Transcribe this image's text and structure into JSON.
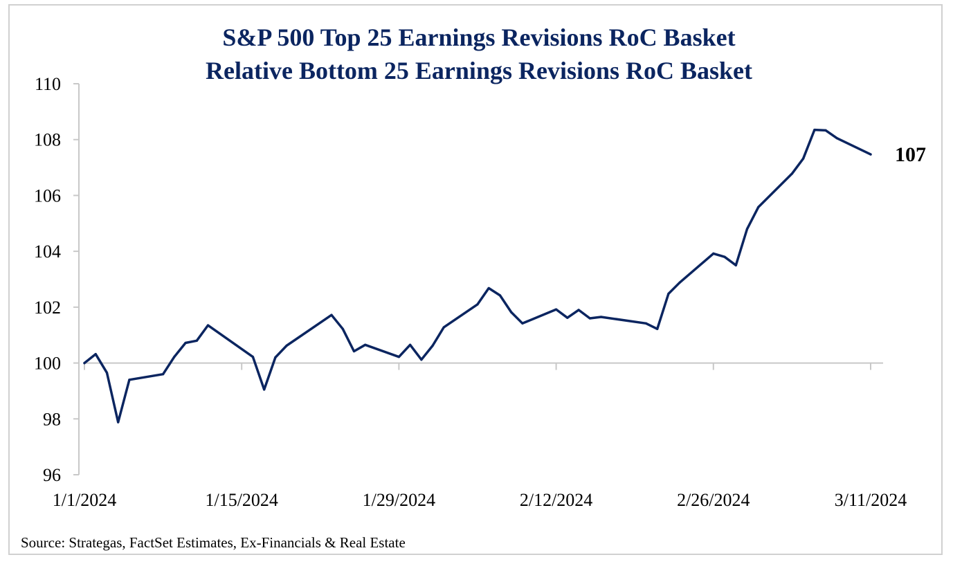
{
  "colors": {
    "line": "#0b2560",
    "title": "#0b2560",
    "axis": "#c8c8c8",
    "frame": "#d0d0d0"
  },
  "chart_data": {
    "type": "line",
    "title": [
      "S&P 500 Top 25 Earnings Revisions RoC Basket",
      "Relative Bottom 25 Earnings Revisions RoC Basket"
    ],
    "xlabel": "",
    "ylabel": "",
    "ylim": [
      96,
      110
    ],
    "yticks": [
      96,
      98,
      100,
      102,
      104,
      106,
      108,
      110
    ],
    "ytick_labels": [
      "96",
      "98",
      "100",
      "102",
      "104",
      "106",
      "108",
      "110"
    ],
    "xlim": [
      "2024-01-01",
      "2024-03-11"
    ],
    "xticks": [
      "2024-01-01",
      "2024-01-15",
      "2024-01-29",
      "2024-02-12",
      "2024-02-26",
      "2024-03-11"
    ],
    "xtick_labels": [
      "1/1/2024",
      "1/15/2024",
      "1/29/2024",
      "2/12/2024",
      "2/26/2024",
      "3/11/2024"
    ],
    "grid": false,
    "legend": "none",
    "end_label": "107",
    "source": "Source: Strategas, FactSet Estimates, Ex-Financials & Real Estate",
    "series": [
      {
        "x": [
          "2024-01-01",
          "2024-01-02",
          "2024-01-03",
          "2024-01-04",
          "2024-01-05",
          "2024-01-08",
          "2024-01-09",
          "2024-01-10",
          "2024-01-11",
          "2024-01-12",
          "2024-01-16",
          "2024-01-17",
          "2024-01-18",
          "2024-01-19",
          "2024-01-23",
          "2024-01-24",
          "2024-01-25",
          "2024-01-26",
          "2024-01-29",
          "2024-01-30",
          "2024-01-31",
          "2024-02-01",
          "2024-02-02",
          "2024-02-05",
          "2024-02-06",
          "2024-02-07",
          "2024-02-08",
          "2024-02-09",
          "2024-02-12",
          "2024-02-13",
          "2024-02-14",
          "2024-02-15",
          "2024-02-16",
          "2024-02-20",
          "2024-02-21",
          "2024-02-22",
          "2024-02-23",
          "2024-02-26",
          "2024-02-27",
          "2024-02-28",
          "2024-02-29",
          "2024-03-01",
          "2024-03-04",
          "2024-03-05",
          "2024-03-06",
          "2024-03-07",
          "2024-03-08",
          "2024-03-11"
        ],
        "values": [
          100.0,
          100.32,
          99.65,
          97.88,
          99.4,
          99.6,
          100.22,
          100.72,
          100.8,
          101.35,
          100.22,
          99.05,
          100.2,
          100.62,
          101.72,
          101.22,
          100.42,
          100.65,
          100.22,
          100.65,
          100.12,
          100.62,
          101.28,
          102.1,
          102.68,
          102.42,
          101.82,
          101.42,
          101.92,
          101.62,
          101.9,
          101.6,
          101.65,
          101.42,
          101.22,
          102.48,
          102.88,
          103.92,
          103.8,
          103.5,
          104.8,
          105.58,
          106.78,
          107.32,
          108.35,
          108.33,
          108.05,
          107.47
        ]
      }
    ]
  }
}
